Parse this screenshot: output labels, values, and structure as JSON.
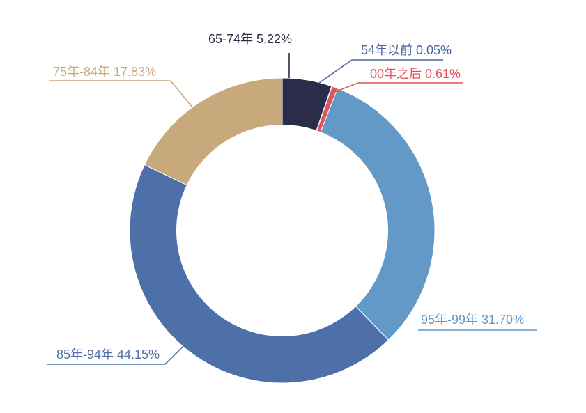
{
  "chart_data": {
    "type": "pie",
    "donut": true,
    "start": "top, clockwise",
    "slices": [
      {
        "label": "65-74年",
        "percent_label": "5.22%",
        "value": 5.22,
        "color": "#2a2c49"
      },
      {
        "label": "54年以前",
        "percent_label": "0.05%",
        "value": 0.05,
        "color": "#4b63a3"
      },
      {
        "label": "00年之后",
        "percent_label": "0.61%",
        "value": 0.61,
        "color": "#e0545a"
      },
      {
        "label": "95年-99年",
        "percent_label": "31.70%",
        "value": 31.7,
        "color": "#6299c7"
      },
      {
        "label": "85年-94年",
        "percent_label": "44.15%",
        "value": 44.15,
        "color": "#4d70a8"
      },
      {
        "label": "75年-84年",
        "percent_label": "17.83%",
        "value": 17.83,
        "color": "#c7a97c"
      }
    ]
  }
}
